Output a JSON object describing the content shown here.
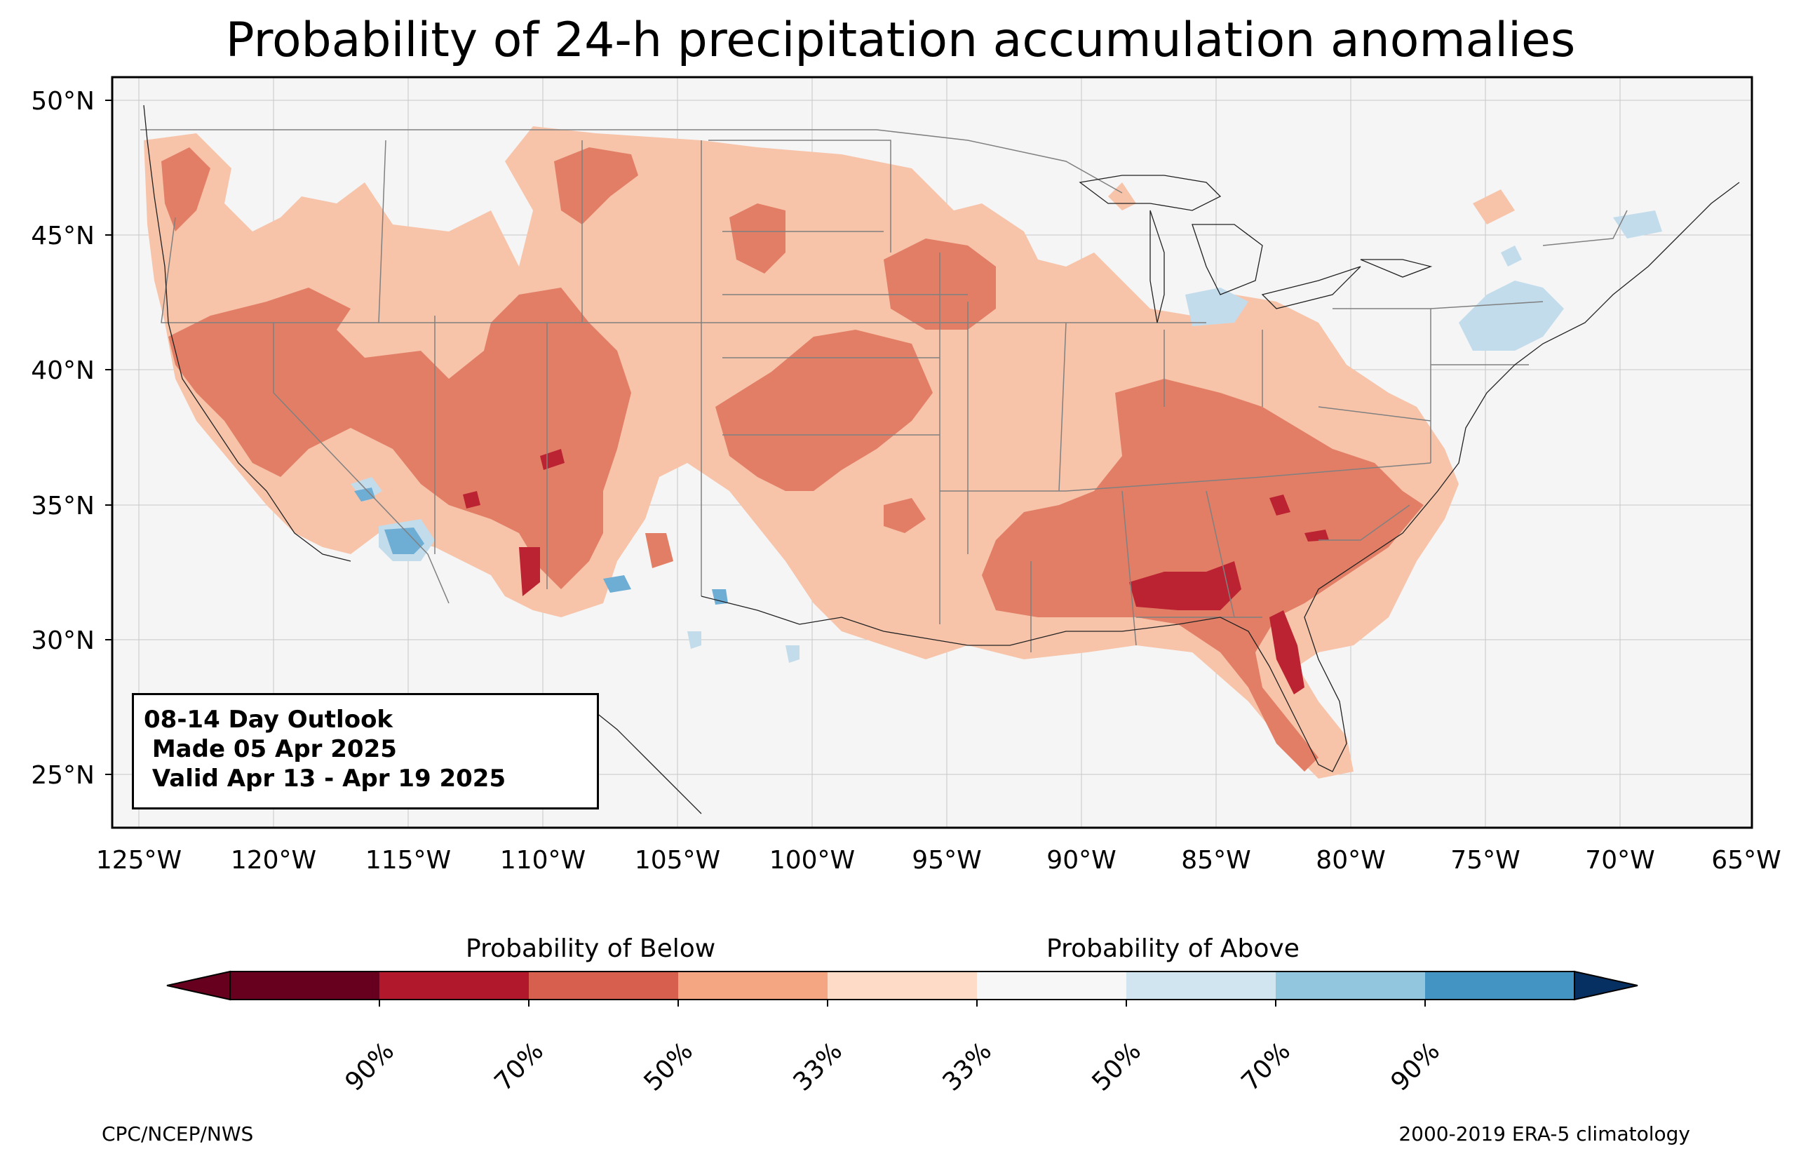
{
  "title": "Probability of 24-h precipitation accumulation anomalies",
  "map": {
    "lat_ticks": [
      "50°N",
      "45°N",
      "40°N",
      "35°N",
      "30°N",
      "25°N"
    ],
    "lon_ticks": [
      "125°W",
      "120°W",
      "115°W",
      "110°W",
      "105°W",
      "100°W",
      "95°W",
      "90°W",
      "85°W",
      "80°W",
      "75°W",
      "70°W",
      "65°W"
    ],
    "extent": {
      "lon": [
        -126,
        -65
      ],
      "lat": [
        23,
        51
      ]
    },
    "background_color": "#f5f5f5"
  },
  "info_box": {
    "line1": "08-14 Day Outlook",
    "line2": " Made 05 Apr 2025",
    "line3": " Valid Apr 13 - Apr 19 2025"
  },
  "colorbar": {
    "below_label": "Probability of Below",
    "above_label": "Probability of Above",
    "tick_labels": [
      "90%",
      "70%",
      "50%",
      "33%",
      "33%",
      "50%",
      "70%",
      "90%"
    ],
    "colors": [
      "#67001f",
      "#b2182b",
      "#d6604d",
      "#f4a582",
      "#fddbc7",
      "#f7f7f7",
      "#d1e5f0",
      "#92c5de",
      "#4393c3",
      "#2166ac",
      "#053061"
    ]
  },
  "credits": {
    "left": "CPC/NCEP/NWS",
    "right": "2000-2019 ERA-5 climatology"
  },
  "legend_colors": {
    "below_33": "#f7c4aa",
    "below_50": "#e27e66",
    "below_70": "#bc2332",
    "above_33": "#c2dcec",
    "above_50": "#6faed4"
  }
}
